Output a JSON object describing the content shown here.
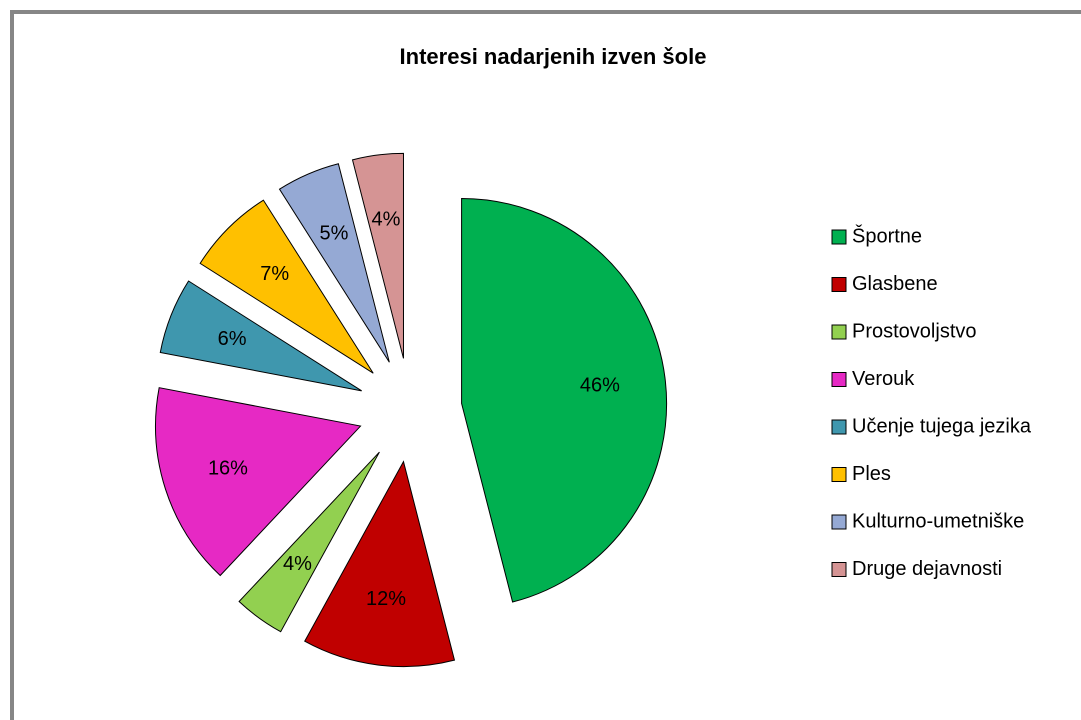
{
  "chart_data": {
    "type": "pie",
    "title": "Interesi nadarjenih izven šole",
    "categories": [
      "Športne",
      "Glasbene",
      "Prostovoljstvo",
      "Verouk",
      "Učenje tujega jezika",
      "Ples",
      "Kulturno-umetniške",
      "Druge dejavnosti"
    ],
    "values": [
      46,
      12,
      4,
      16,
      6,
      7,
      5,
      4
    ],
    "value_labels": [
      "46%",
      "12%",
      "4%",
      "16%",
      "6%",
      "7%",
      "5%",
      "4%"
    ],
    "colors": [
      "#00b050",
      "#c00000",
      "#92d050",
      "#e629c4",
      "#3f97ae",
      "#ffc000",
      "#95a9d4",
      "#d59494"
    ],
    "legend": "right"
  }
}
